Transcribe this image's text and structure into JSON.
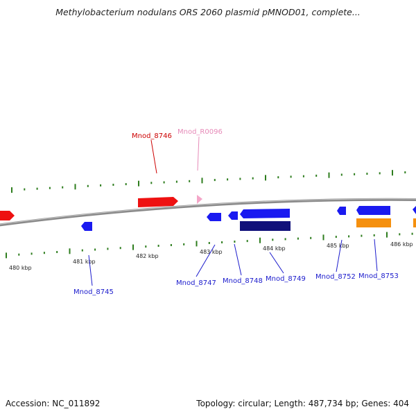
{
  "title": "Methylobacterium nodulans ORS 2060 plasmid pMNOD01, complete...",
  "footer": {
    "accession": "Accession: NC_011892",
    "summary": "Topology: circular; Length: 487,734 bp; Genes: 404"
  },
  "colors": {
    "backbone": "#8a8a8a",
    "tick": "#2e7d1e",
    "forward_gene": "#ee1111",
    "forward_rna": "#f4a6c8",
    "reverse_gene": "#1a1af0",
    "reverse_gene_dark": "#11117a",
    "orange_feature": "#f5900e",
    "label_red": "#cc0000",
    "label_pink": "#e68ab8",
    "label_blue": "#1a1acc"
  },
  "kbp_labels": [
    "480 kbp",
    "481 kbp",
    "482 kbp",
    "483 kbp",
    "484 kbp",
    "485 kbp",
    "486 kbp"
  ],
  "forward_labels": [
    "Mnod_8746",
    "Mnod_R0096"
  ],
  "reverse_labels": [
    "Mnod_8745",
    "Mnod_8747",
    "Mnod_8748",
    "Mnod_8749",
    "Mnod_8752",
    "Mnod_8753"
  ]
}
